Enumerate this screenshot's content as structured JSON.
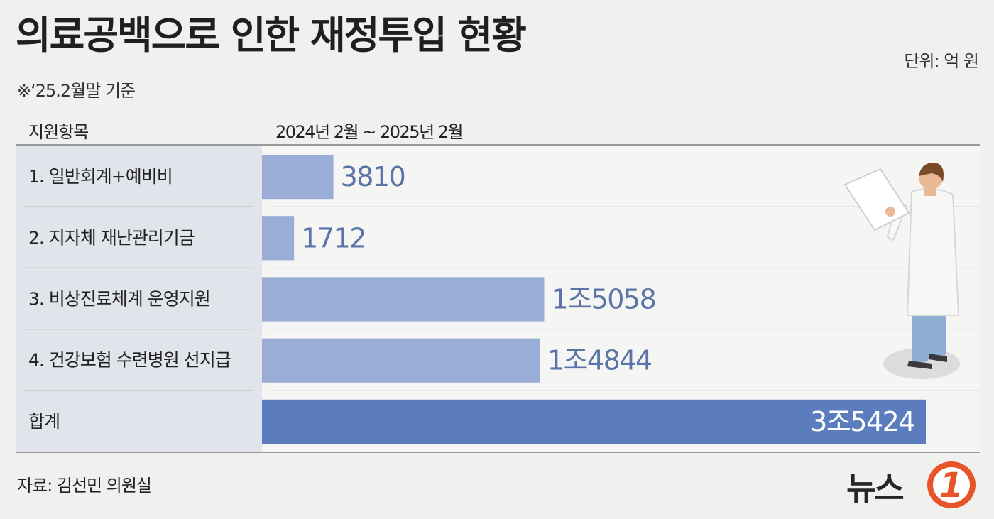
{
  "header": {
    "title": "의료공백으로 인한 재정투입 현황",
    "subtitle": "※‘25.2월말 기준",
    "unit": "단위: 억 원"
  },
  "table": {
    "col_header": "지원항목",
    "period_header": "2024년 2월 ~ 2025년 2월"
  },
  "chart_data": {
    "type": "bar",
    "orientation": "horizontal",
    "title": "의료공백으로 인한 재정투입 현황",
    "unit": "억 원",
    "categories": [
      "1. 일반회계+예비비",
      "2. 지자체 재난관리기금",
      "3. 비상진료체계 운영지원",
      "4. 건강보험 수련병원 선지급",
      "합계"
    ],
    "values": [
      3810,
      1712,
      15058,
      14844,
      35424
    ],
    "value_labels": [
      "3810",
      "1712",
      "1조5058",
      "1조4844",
      "3조5424"
    ],
    "colors": {
      "bar": "#9aadd7",
      "total_bar": "#5b7dbd",
      "value_text": "#5a74a8",
      "total_value_text": "#ffffff"
    }
  },
  "footer": {
    "source": "자료: 김선민 의원실",
    "logo_text": "뉴스",
    "logo_mark": "1"
  },
  "icons": [
    "doctor-illustration",
    "news1-logo"
  ]
}
